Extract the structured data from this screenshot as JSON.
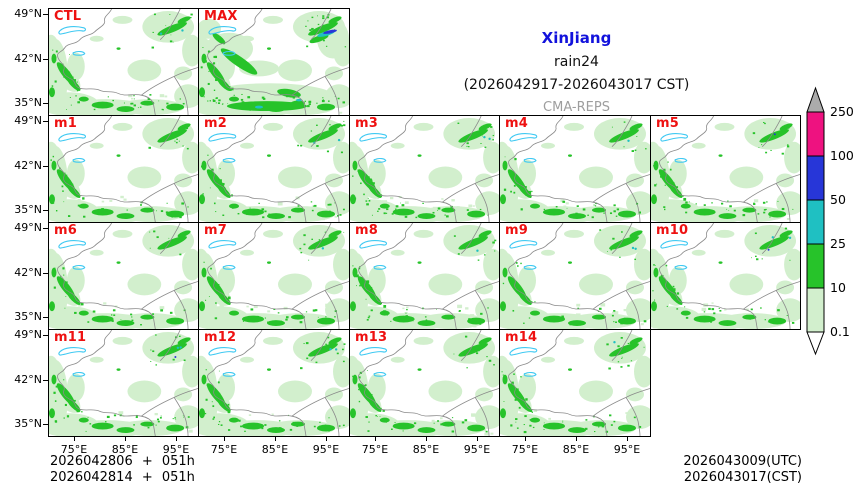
{
  "header": {
    "region": "XinJiang",
    "variable": "rain24",
    "period": "(2026042917-2026043017 CST)",
    "model": "CMA-REPS"
  },
  "panels": {
    "labels": [
      "CTL",
      "MAX",
      "m1",
      "m2",
      "m3",
      "m4",
      "m5",
      "m6",
      "m7",
      "m8",
      "m9",
      "m10",
      "m11",
      "m12",
      "m13",
      "m14"
    ]
  },
  "axes": {
    "lat_ticks": [
      "49°N",
      "42°N",
      "35°N"
    ],
    "lon_ticks": [
      "75°E",
      "85°E",
      "95°E"
    ]
  },
  "colorbar": {
    "values": [
      "250",
      "100",
      "50",
      "25",
      "10",
      "0.1"
    ]
  },
  "footer": {
    "runs": [
      "2026042806 + 051h",
      "2026042814 + 051h"
    ],
    "valid": [
      "2026043009(UTC)",
      "2026043017(CST)"
    ]
  },
  "colors": {
    "title_blue": "#1212dc",
    "label_red": "#ee1111",
    "model_gray": "#9e9e9e",
    "text_black": "#111111",
    "border_gray": "#8a8a8a",
    "lake_cyan": "#3fc9f2",
    "rain_light": "#d2efcd",
    "rain_green": "#27c32a",
    "rain_teal": "#1fc0c2",
    "rain_blue": "#2736d8",
    "rain_pink": "#ee1280",
    "over_gray": "#ababab",
    "under_white": "#ffffff"
  },
  "chart_data": {
    "type": "heatmap",
    "title": "XinJiang rain24 (2026042917-2026043017 CST)",
    "model": "CMA-REPS",
    "panels": [
      "CTL",
      "MAX",
      "m1",
      "m2",
      "m3",
      "m4",
      "m5",
      "m6",
      "m7",
      "m8",
      "m9",
      "m10",
      "m11",
      "m12",
      "m13",
      "m14"
    ],
    "x_ticks": [
      "75°E",
      "85°E",
      "95°E"
    ],
    "y_ticks": [
      "49°N",
      "42°N",
      "35°N"
    ],
    "colorbar_levels_mm": [
      0.1,
      10,
      25,
      50,
      100,
      250
    ],
    "colorbar_colors": [
      "#d2efcd",
      "#27c32a",
      "#1fc0c2",
      "#2736d8",
      "#ee1280"
    ],
    "over_color": "#ababab",
    "legend_position": "right",
    "init_runs": [
      "2026042806 + 051h",
      "2026042814 + 051h"
    ],
    "valid_time": [
      "2026043009(UTC)",
      "2026043017(CST)"
    ]
  }
}
